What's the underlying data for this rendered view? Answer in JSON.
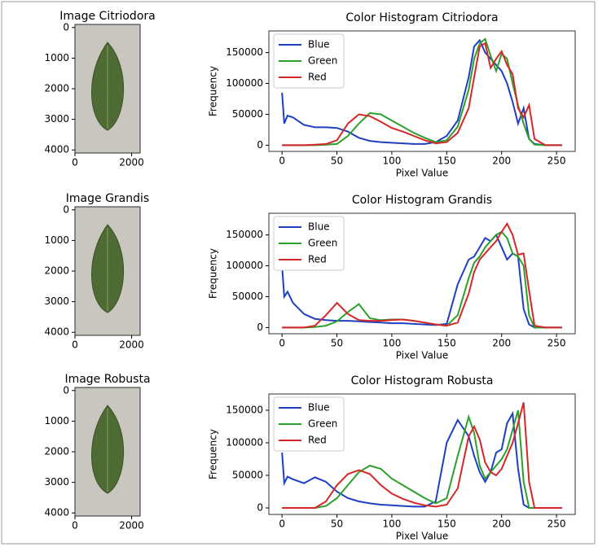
{
  "chart_data": [
    {
      "type": "image",
      "title": "Image Citriodora",
      "xlim": [
        0,
        2300
      ],
      "ylim": [
        4100,
        -100
      ],
      "xticks": [
        0,
        2000
      ],
      "yticks": [
        0,
        1000,
        2000,
        3000,
        4000
      ]
    },
    {
      "type": "line",
      "title": "Color Histogram Citriodora",
      "xlabel": "Pixel Value",
      "ylabel": "Frequency",
      "legend": "upper left",
      "xlim": [
        -12,
        267
      ],
      "ylim": [
        -10000,
        185000
      ],
      "xticks": [
        0,
        50,
        100,
        150,
        200,
        250
      ],
      "yticks": [
        0,
        50000,
        100000,
        150000
      ],
      "x": [
        0,
        2,
        5,
        10,
        20,
        30,
        40,
        50,
        60,
        70,
        80,
        90,
        100,
        110,
        120,
        130,
        140,
        150,
        160,
        170,
        175,
        180,
        185,
        190,
        195,
        200,
        205,
        210,
        215,
        220,
        225,
        230,
        240,
        255
      ],
      "series": [
        {
          "name": "Blue",
          "color": "#1f3fbf",
          "values": [
            85000,
            35000,
            48000,
            45000,
            33000,
            29000,
            29000,
            28000,
            22000,
            12000,
            7000,
            5000,
            4000,
            3000,
            2000,
            2000,
            5000,
            15000,
            40000,
            110000,
            160000,
            170000,
            150000,
            140000,
            130000,
            120000,
            100000,
            70000,
            35000,
            60000,
            10000,
            2000,
            0,
            0
          ]
        },
        {
          "name": "Green",
          "color": "#2ca02c",
          "values": [
            0,
            0,
            0,
            0,
            0,
            0,
            1000,
            2000,
            15000,
            35000,
            52000,
            50000,
            40000,
            30000,
            20000,
            12000,
            5000,
            8000,
            30000,
            90000,
            140000,
            165000,
            172000,
            145000,
            120000,
            148000,
            140000,
            100000,
            65000,
            35000,
            10000,
            1000,
            0,
            0
          ]
        },
        {
          "name": "Red",
          "color": "#d62728",
          "values": [
            0,
            0,
            0,
            0,
            0,
            1000,
            2000,
            8000,
            35000,
            50000,
            47000,
            38000,
            28000,
            22000,
            15000,
            8000,
            3000,
            5000,
            20000,
            60000,
            110000,
            160000,
            165000,
            125000,
            140000,
            152000,
            130000,
            115000,
            60000,
            45000,
            65000,
            10000,
            0,
            0
          ]
        }
      ]
    },
    {
      "type": "image",
      "title": "Image Grandis",
      "xlim": [
        0,
        2300
      ],
      "ylim": [
        4100,
        -100
      ],
      "xticks": [
        0,
        2000
      ],
      "yticks": [
        0,
        1000,
        2000,
        3000,
        4000
      ]
    },
    {
      "type": "line",
      "title": "Color Histogram Grandis",
      "xlabel": "Pixel Value",
      "ylabel": "Frequency",
      "legend": "upper left",
      "xlim": [
        -12,
        267
      ],
      "ylim": [
        -10000,
        185000
      ],
      "xticks": [
        0,
        50,
        100,
        150,
        200,
        250
      ],
      "yticks": [
        0,
        50000,
        100000,
        150000
      ],
      "x": [
        0,
        2,
        5,
        10,
        20,
        30,
        40,
        50,
        60,
        70,
        80,
        90,
        100,
        110,
        120,
        130,
        140,
        150,
        160,
        170,
        175,
        180,
        185,
        190,
        195,
        200,
        205,
        210,
        215,
        220,
        225,
        230,
        240,
        255
      ],
      "series": [
        {
          "name": "Blue",
          "color": "#1f3fbf",
          "values": [
            100000,
            50000,
            58000,
            40000,
            22000,
            14000,
            12000,
            11000,
            11000,
            10000,
            9000,
            8000,
            7000,
            7000,
            6000,
            5000,
            4000,
            6000,
            70000,
            110000,
            115000,
            130000,
            145000,
            140000,
            150000,
            130000,
            110000,
            120000,
            115000,
            30000,
            5000,
            0,
            0,
            0
          ]
        },
        {
          "name": "Green",
          "color": "#2ca02c",
          "values": [
            0,
            0,
            0,
            0,
            0,
            1000,
            3000,
            10000,
            25000,
            38000,
            15000,
            12000,
            13000,
            13000,
            11000,
            8000,
            5000,
            3000,
            20000,
            80000,
            105000,
            115000,
            130000,
            140000,
            150000,
            155000,
            145000,
            120000,
            115000,
            100000,
            20000,
            0,
            0,
            0
          ]
        },
        {
          "name": "Red",
          "color": "#d62728",
          "values": [
            0,
            0,
            0,
            0,
            0,
            3000,
            20000,
            40000,
            22000,
            12000,
            11000,
            11000,
            12000,
            13000,
            11000,
            8000,
            5000,
            3000,
            8000,
            55000,
            90000,
            110000,
            120000,
            130000,
            140000,
            155000,
            168000,
            150000,
            118000,
            120000,
            60000,
            3000,
            0,
            0
          ]
        }
      ]
    },
    {
      "type": "image",
      "title": "Image Robusta",
      "xlim": [
        0,
        2300
      ],
      "ylim": [
        4100,
        -100
      ],
      "xticks": [
        0,
        2000
      ],
      "yticks": [
        0,
        1000,
        2000,
        3000,
        4000
      ]
    },
    {
      "type": "line",
      "title": "Color Histogram Robusta",
      "xlabel": "Pixel Value",
      "ylabel": "Frequency",
      "legend": "upper left",
      "xlim": [
        -12,
        267
      ],
      "ylim": [
        -10000,
        175000
      ],
      "xticks": [
        0,
        50,
        100,
        150,
        200,
        250
      ],
      "yticks": [
        0,
        50000,
        100000,
        150000
      ],
      "x": [
        0,
        2,
        5,
        10,
        20,
        30,
        40,
        50,
        60,
        70,
        80,
        90,
        100,
        110,
        120,
        130,
        140,
        150,
        160,
        170,
        175,
        180,
        185,
        190,
        195,
        200,
        205,
        210,
        215,
        220,
        225,
        230,
        240,
        255
      ],
      "series": [
        {
          "name": "Blue",
          "color": "#1f3fbf",
          "values": [
            85000,
            38000,
            48000,
            44000,
            38000,
            47000,
            40000,
            25000,
            15000,
            10000,
            7000,
            5000,
            4000,
            3000,
            2000,
            2000,
            10000,
            100000,
            135000,
            110000,
            80000,
            55000,
            40000,
            55000,
            85000,
            90000,
            130000,
            145000,
            60000,
            5000,
            0,
            0,
            0,
            0
          ]
        },
        {
          "name": "Green",
          "color": "#2ca02c",
          "values": [
            0,
            0,
            0,
            0,
            0,
            0,
            3000,
            15000,
            35000,
            55000,
            65000,
            60000,
            45000,
            35000,
            25000,
            15000,
            7000,
            15000,
            80000,
            140000,
            115000,
            65000,
            45000,
            55000,
            65000,
            75000,
            90000,
            120000,
            150000,
            40000,
            0,
            0,
            0,
            0
          ]
        },
        {
          "name": "Red",
          "color": "#d62728",
          "values": [
            0,
            0,
            0,
            0,
            0,
            0,
            10000,
            35000,
            52000,
            58000,
            52000,
            35000,
            22000,
            14000,
            8000,
            4000,
            2000,
            5000,
            30000,
            110000,
            125000,
            105000,
            70000,
            55000,
            50000,
            60000,
            80000,
            100000,
            130000,
            162000,
            40000,
            0,
            0,
            0
          ]
        }
      ]
    }
  ]
}
